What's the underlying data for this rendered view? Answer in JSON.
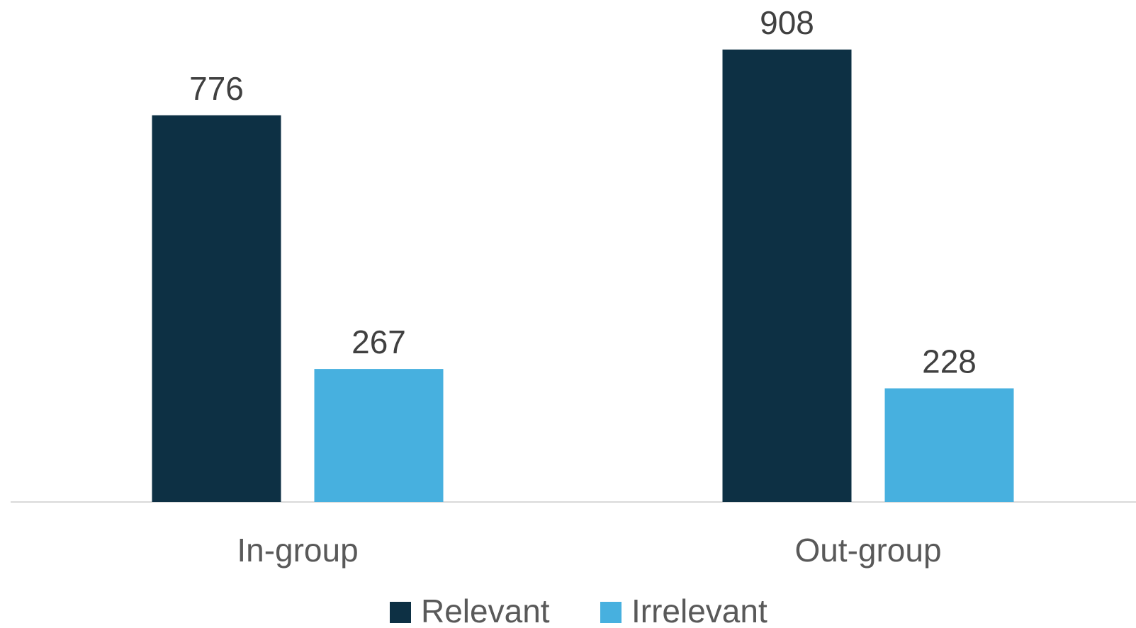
{
  "chart_data": {
    "type": "bar",
    "title": "",
    "xlabel": "",
    "ylabel": "",
    "categories": [
      "In-group",
      "Out-group"
    ],
    "series": [
      {
        "name": "Relevant",
        "values": [
          776,
          908
        ],
        "color": "#0d3044"
      },
      {
        "name": "Irrelevant",
        "values": [
          267,
          228
        ],
        "color": "#47b0df"
      }
    ],
    "ylim": [
      0,
      1000
    ],
    "grid": false,
    "legend": "bottom",
    "axis_line_color": "#d9d9d9",
    "data_labels": true
  }
}
